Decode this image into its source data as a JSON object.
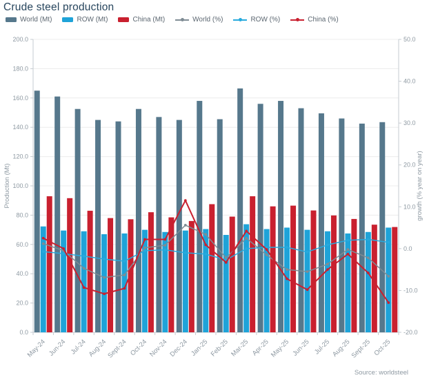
{
  "header": {
    "title": "Crude steel production"
  },
  "footer": {
    "source": "Source: worldsteel"
  },
  "colors": {
    "world_bar": "#56788c",
    "row_bar": "#1fa3d8",
    "china_bar": "#c9202f",
    "world_line": "#7f8c94",
    "row_line": "#27aadd",
    "china_line": "#c9202f",
    "title_text": "#27455d",
    "legend_text": "#5b6670",
    "axis_text": "#8e99a2",
    "axis_line": "#c5cbd0",
    "grid": "#ececec"
  },
  "legend": [
    {
      "label": "World (Mt)",
      "type": "bar",
      "color_key": "world_bar"
    },
    {
      "label": "ROW (Mt)",
      "type": "bar",
      "color_key": "row_bar"
    },
    {
      "label": "China (Mt)",
      "type": "bar",
      "color_key": "china_bar"
    },
    {
      "label": "World (%)",
      "type": "line",
      "color_key": "world_line"
    },
    {
      "label": "ROW (%)",
      "type": "line",
      "color_key": "row_line"
    },
    {
      "label": "China (%)",
      "type": "line",
      "color_key": "china_line"
    }
  ],
  "chart_data": {
    "type": "combo (bar + line)",
    "title": "Crude steel production",
    "legend_position": "top",
    "grid": true,
    "categories": [
      "May-24",
      "Jun-24",
      "Jul-24",
      "Aug-24",
      "Sept-24",
      "Oct-24",
      "Nov-24",
      "Dec-24",
      "Jan-25",
      "Feb-25",
      "Mar-25",
      "Apr-25",
      "May-25",
      "Jun-25",
      "Jul-25",
      "Aug-25",
      "Sept-25",
      "Oct-25"
    ],
    "bar_series": [
      {
        "name": "World (Mt)",
        "axis": "left",
        "color_key": "world_bar",
        "values": [
          165,
          161,
          152.5,
          145,
          144,
          152.5,
          147,
          145,
          158,
          145.5,
          166.5,
          156,
          158,
          153,
          149.5,
          146,
          142.5,
          143.5
        ]
      },
      {
        "name": "ROW (Mt)",
        "axis": "left",
        "color_key": "row_bar",
        "values": [
          72.3,
          69.5,
          69,
          67,
          67.5,
          70,
          68.5,
          69.5,
          70.5,
          66.5,
          73.8,
          70.5,
          71.5,
          70,
          69,
          67.5,
          68.5,
          71.5
        ]
      },
      {
        "name": "China (Mt)",
        "axis": "left",
        "color_key": "china_bar",
        "values": [
          92.9,
          91.6,
          83,
          78,
          77.2,
          82,
          78.5,
          76,
          87.5,
          79,
          92.9,
          86,
          86.5,
          83.2,
          79.8,
          77.4,
          73.5,
          71.9
        ]
      }
    ],
    "line_series": [
      {
        "name": "World (%)",
        "axis": "right",
        "color_key": "world_line",
        "values": [
          1.2,
          -0.5,
          -4.7,
          -6.9,
          -6.3,
          0.2,
          0.8,
          5.6,
          3.4,
          -2.2,
          2.5,
          -1.5,
          -5.0,
          -5.5,
          -3.7,
          -0.2,
          -2.2,
          -6.6
        ]
      },
      {
        "name": "ROW (%)",
        "axis": "right",
        "color_key": "row_line",
        "values": [
          -0.7,
          -1.2,
          -1.8,
          -2.5,
          -3.0,
          -0.5,
          -0.3,
          -1.0,
          -1.3,
          -2.7,
          0.0,
          0.3,
          0.3,
          -0.8,
          0.9,
          2.0,
          2.2,
          1.5
        ]
      },
      {
        "name": "China (%)",
        "axis": "right",
        "color_key": "china_line",
        "values": [
          2.5,
          0.0,
          -9.3,
          -10.8,
          -9.5,
          2.2,
          2.2,
          11.5,
          0.9,
          -3.3,
          4.2,
          -0.2,
          -7.2,
          -9.8,
          -5.0,
          -1.3,
          -5.8,
          -12.9
        ]
      }
    ],
    "y_left": {
      "label": "Production (Mt)",
      "min": 0,
      "max": 200,
      "step": 20
    },
    "y_right": {
      "label": "growth (% year on year)",
      "min": -20,
      "max": 50,
      "step": 10
    }
  }
}
